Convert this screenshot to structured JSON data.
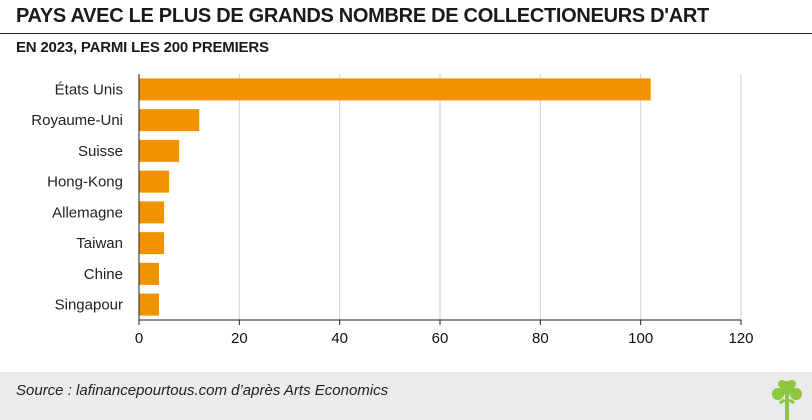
{
  "title": "PAYS AVEC LE PLUS DE GRANDS NOMBRE DE COLLECTIONEURS D'ART",
  "subtitle": "EN 2023, PARMI LES 200 PREMIERS",
  "source": "Source : lafinancepourtous.com d’après Arts Economics",
  "logo_icon": "tree-logo-icon",
  "colors": {
    "bar": "#f39200",
    "grid": "#cfcfcf",
    "axis": "#222222",
    "logo": "#8dc63f"
  },
  "chart_data": {
    "type": "bar",
    "orientation": "horizontal",
    "categories": [
      "États Unis",
      "Royaume-Uni",
      "Suisse",
      "Hong-Kong",
      "Allemagne",
      "Taiwan",
      "Chine",
      "Singapour"
    ],
    "values": [
      102,
      12,
      8,
      6,
      5,
      5,
      4,
      4
    ],
    "title": "PAYS AVEC LE PLUS DE GRANDS NOMBRE DE COLLECTIONEURS D'ART",
    "subtitle": "EN 2023, PARMI LES 200 PREMIERS",
    "xlabel": "",
    "ylabel": "",
    "xlim": [
      0,
      120
    ],
    "xticks": [
      0,
      20,
      40,
      60,
      80,
      100,
      120
    ],
    "grid": "vertical",
    "legend": "none"
  }
}
